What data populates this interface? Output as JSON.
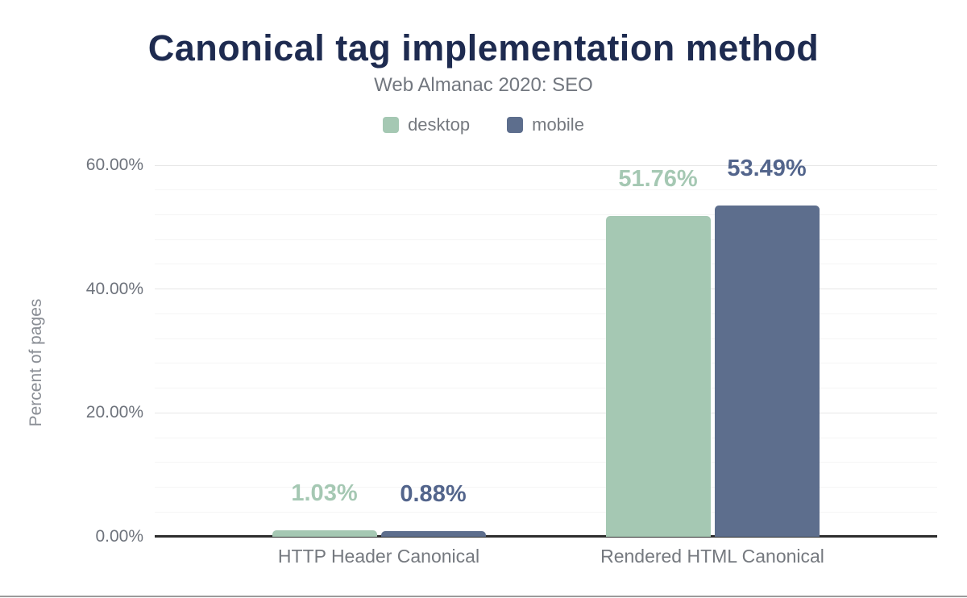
{
  "page": {
    "title": "Canonical tag implementation method",
    "subtitle": "Web Almanac 2020: SEO"
  },
  "chart_data": {
    "type": "bar",
    "title": "Canonical tag implementation method",
    "subtitle": "Web Almanac 2020: SEO",
    "xlabel": "",
    "ylabel": "Percent of pages",
    "categories": [
      "HTTP Header Canonical",
      "Rendered HTML Canonical"
    ],
    "series": [
      {
        "name": "desktop",
        "color": "#a5c8b3",
        "label_color": "#a5c8b3",
        "values": [
          1.03,
          51.76
        ],
        "value_labels": [
          "1.03%",
          "51.76%"
        ]
      },
      {
        "name": "mobile",
        "color": "#5d6e8d",
        "label_color": "#53658c",
        "values": [
          0.88,
          53.49
        ],
        "value_labels": [
          "0.88%",
          "53.49%"
        ]
      }
    ],
    "yticks": [
      {
        "value": 0,
        "label": "0.00%"
      },
      {
        "value": 20,
        "label": "20.00%"
      },
      {
        "value": 40,
        "label": "40.00%"
      },
      {
        "value": 60,
        "label": "60.00%"
      }
    ],
    "ylim": [
      0,
      60
    ],
    "minor_grid_step": 4,
    "grid": true,
    "legend_position": "top",
    "colors": {
      "title": "#1e2b50",
      "subtitle": "#72777f",
      "tick_text": "#6e737c",
      "category_text": "#75797f",
      "major_gridline": "#e7e7e7",
      "minor_gridline": "#f5f5f5",
      "axis_line": "#2d2d2d",
      "bottom_divider": "#9b9b9b"
    }
  }
}
